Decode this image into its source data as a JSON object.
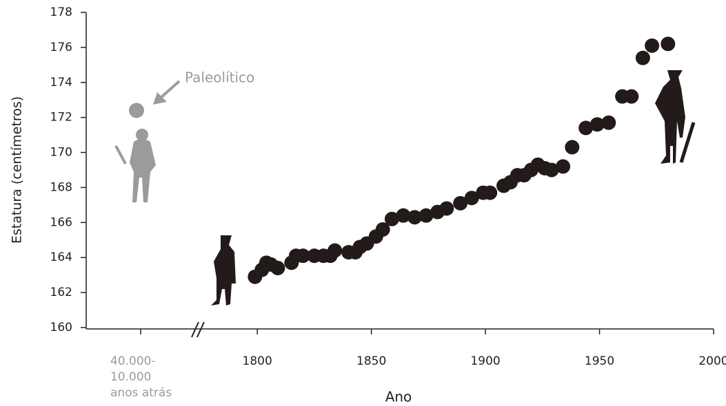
{
  "chart_data": {
    "type": "scatter",
    "xlabel": "Ano",
    "ylabel": "Estatura (centímetros)",
    "xlim": [
      1725,
      2000
    ],
    "xticks": [
      1800,
      1850,
      1900,
      1950,
      2000
    ],
    "ylim": [
      160,
      178
    ],
    "yticks": [
      160,
      162,
      164,
      166,
      168,
      170,
      172,
      174,
      176,
      178
    ],
    "color": "#231a1a",
    "x": [
      1799,
      1802,
      1804,
      1806,
      1809,
      1815,
      1817,
      1820,
      1825,
      1829,
      1832,
      1834,
      1840,
      1843,
      1845,
      1848,
      1852,
      1855,
      1859,
      1864,
      1869,
      1874,
      1879,
      1883,
      1889,
      1894,
      1899,
      1902,
      1908,
      1911,
      1914,
      1917,
      1920,
      1923,
      1926,
      1929,
      1934,
      1938,
      1944,
      1949,
      1954,
      1960,
      1964,
      1969,
      1973,
      1980
    ],
    "values": [
      162.9,
      163.3,
      163.7,
      163.6,
      163.4,
      163.7,
      164.1,
      164.1,
      164.1,
      164.1,
      164.1,
      164.4,
      164.3,
      164.3,
      164.6,
      164.8,
      165.2,
      165.6,
      166.2,
      166.4,
      166.3,
      166.4,
      166.6,
      166.8,
      167.1,
      167.4,
      167.7,
      167.7,
      168.1,
      168.3,
      168.7,
      168.7,
      169.0,
      169.3,
      169.1,
      169.0,
      169.2,
      170.3,
      171.4,
      171.6,
      171.7,
      173.2,
      173.2,
      175.4,
      176.1,
      176.2
    ],
    "paleolithic": {
      "annotation": "Paleolítico",
      "value": 172.4,
      "color": "#9b9b9b",
      "label": [
        "40.000-",
        "10.000",
        "anos atrás"
      ]
    }
  }
}
